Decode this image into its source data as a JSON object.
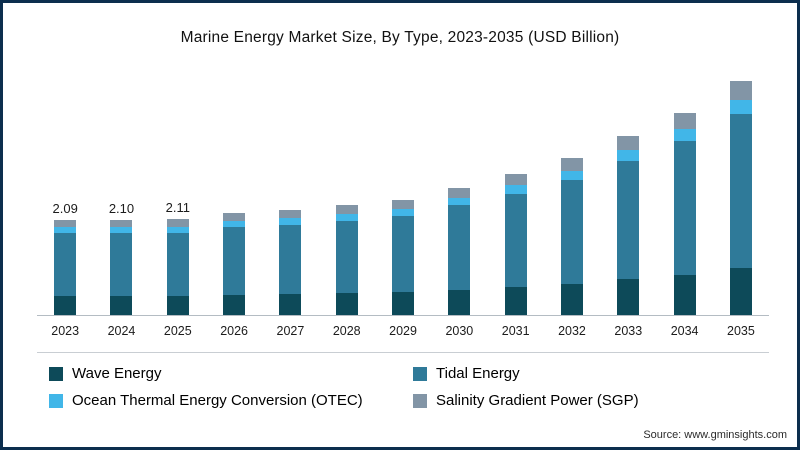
{
  "title": "Marine Energy Market Size, By Type, 2023-2035 (USD Billion)",
  "source": "Source: www.gminsights.com",
  "colors": {
    "border": "#0c2e4e",
    "wave": "#0d4a59",
    "tidal": "#2f7a99",
    "otec": "#41b6e8",
    "sgp": "#8295a6"
  },
  "legend": [
    {
      "label": "Wave Energy",
      "color_key": "wave"
    },
    {
      "label": "Tidal Energy",
      "color_key": "tidal"
    },
    {
      "label": "Ocean Thermal Energy Conversion (OTEC)",
      "color_key": "otec"
    },
    {
      "label": "Salinity Gradient Power (SGP)",
      "color_key": "sgp"
    }
  ],
  "chart_data": {
    "type": "bar",
    "stacked": true,
    "title": "Marine Energy Market Size, By Type, 2023-2035 (USD Billion)",
    "xlabel": "",
    "ylabel": "",
    "ylim": [
      0,
      5.5
    ],
    "grid": false,
    "legend_position": "bottom",
    "categories": [
      2023,
      2024,
      2025,
      2026,
      2027,
      2028,
      2029,
      2030,
      2031,
      2032,
      2033,
      2034,
      2035
    ],
    "series": [
      {
        "name": "Wave Energy",
        "color_key": "wave",
        "values": [
          0.42,
          0.42,
          0.42,
          0.45,
          0.46,
          0.48,
          0.51,
          0.56,
          0.62,
          0.69,
          0.79,
          0.89,
          1.03
        ]
      },
      {
        "name": "Tidal Energy",
        "color_key": "tidal",
        "values": [
          1.38,
          1.39,
          1.39,
          1.48,
          1.53,
          1.6,
          1.67,
          1.85,
          2.05,
          2.28,
          2.61,
          2.94,
          3.4
        ]
      },
      {
        "name": "Ocean Thermal Energy Conversion (OTEC)",
        "color_key": "otec",
        "values": [
          0.13,
          0.13,
          0.13,
          0.14,
          0.14,
          0.15,
          0.15,
          0.17,
          0.19,
          0.21,
          0.24,
          0.27,
          0.31
        ]
      },
      {
        "name": "Salinity Gradient Power (SGP)",
        "color_key": "sgp",
        "values": [
          0.16,
          0.16,
          0.17,
          0.18,
          0.19,
          0.19,
          0.2,
          0.22,
          0.24,
          0.27,
          0.31,
          0.35,
          0.41
        ]
      }
    ],
    "data_labels": {
      "2023": "2.09",
      "2024": "2.10",
      "2025": "2.11"
    }
  }
}
